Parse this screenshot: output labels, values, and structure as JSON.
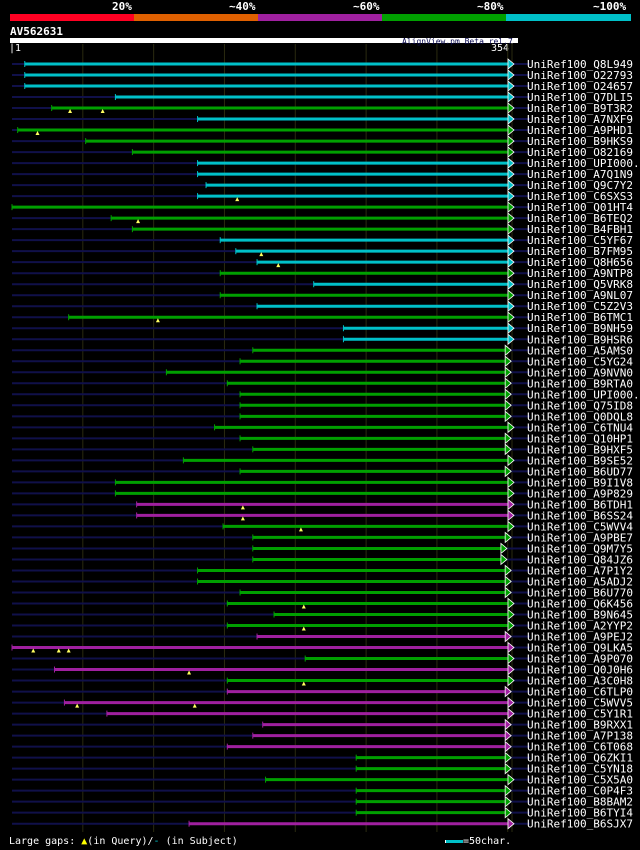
{
  "color_key": [
    {
      "label": "20%",
      "color": "#ff0022"
    },
    {
      "label": "~40%",
      "color": "#e06000"
    },
    {
      "label": "~60%",
      "color": "#a020a0"
    },
    {
      "label": "~80%",
      "color": "#00a000"
    },
    {
      "label": "~100%",
      "color": "#00c0c8"
    }
  ],
  "query": {
    "name": "AV562631",
    "start_label": "|1",
    "end_label": "354|",
    "length": 354
  },
  "credit": "AlignView.pm Beta rel.7",
  "grid_every": 50,
  "hits": [
    {
      "id": "UniRef100_Q8L949",
      "c": 4,
      "s": 10,
      "e": 354,
      "gaps": []
    },
    {
      "id": "UniRef100_O22793",
      "c": 4,
      "s": 10,
      "e": 354,
      "gaps": []
    },
    {
      "id": "UniRef100_O24657",
      "c": 4,
      "s": 10,
      "e": 354,
      "gaps": []
    },
    {
      "id": "UniRef100_Q7DLI5",
      "c": 4,
      "s": 74,
      "e": 354,
      "gaps": []
    },
    {
      "id": "UniRef100_B9T3R2",
      "c": 3,
      "s": 29,
      "e": 354,
      "gaps": [
        42,
        65
      ]
    },
    {
      "id": "UniRef100_A7NXF9",
      "c": 4,
      "s": 132,
      "e": 354,
      "gaps": []
    },
    {
      "id": "UniRef100_A9PHD1",
      "c": 3,
      "s": 5,
      "e": 354,
      "gaps": [
        19
      ]
    },
    {
      "id": "UniRef100_B9HKS9",
      "c": 3,
      "s": 53,
      "e": 354,
      "gaps": []
    },
    {
      "id": "UniRef100_O82169",
      "c": 3,
      "s": 86,
      "e": 354,
      "gaps": []
    },
    {
      "id": "UniRef100_UPI000..",
      "c": 4,
      "s": 132,
      "e": 354,
      "gaps": []
    },
    {
      "id": "UniRef100_A7Q1N9",
      "c": 4,
      "s": 132,
      "e": 354,
      "gaps": []
    },
    {
      "id": "UniRef100_Q9C7Y2",
      "c": 4,
      "s": 138,
      "e": 354,
      "gaps": []
    },
    {
      "id": "UniRef100_C6SXS3",
      "c": 4,
      "s": 132,
      "e": 354,
      "gaps": [
        160
      ]
    },
    {
      "id": "UniRef100_Q01HT4",
      "c": 3,
      "s": 1,
      "e": 354,
      "gaps": []
    },
    {
      "id": "UniRef100_B6TEQ2",
      "c": 3,
      "s": 71,
      "e": 354,
      "gaps": [
        90
      ]
    },
    {
      "id": "UniRef100_B4FBH1",
      "c": 3,
      "s": 86,
      "e": 354,
      "gaps": []
    },
    {
      "id": "UniRef100_C5YF67",
      "c": 4,
      "s": 148,
      "e": 354,
      "gaps": []
    },
    {
      "id": "UniRef100_B7FM95",
      "c": 4,
      "s": 159,
      "e": 354,
      "gaps": [
        177
      ]
    },
    {
      "id": "UniRef100_Q8H656",
      "c": 4,
      "s": 174,
      "e": 354,
      "gaps": [
        189
      ]
    },
    {
      "id": "UniRef100_A9NTP8",
      "c": 3,
      "s": 148,
      "e": 354,
      "gaps": []
    },
    {
      "id": "UniRef100_Q5VRK8",
      "c": 4,
      "s": 214,
      "e": 354,
      "gaps": []
    },
    {
      "id": "UniRef100_A9NL07",
      "c": 3,
      "s": 148,
      "e": 354,
      "gaps": []
    },
    {
      "id": "UniRef100_C5Z2V3",
      "c": 4,
      "s": 174,
      "e": 354,
      "gaps": []
    },
    {
      "id": "UniRef100_B6TMC1",
      "c": 3,
      "s": 41,
      "e": 354,
      "gaps": [
        104
      ]
    },
    {
      "id": "UniRef100_B9NH59",
      "c": 4,
      "s": 235,
      "e": 354,
      "gaps": []
    },
    {
      "id": "UniRef100_B9HSR6",
      "c": 4,
      "s": 235,
      "e": 354,
      "gaps": []
    },
    {
      "id": "UniRef100_A5AMS0",
      "c": 3,
      "s": 171,
      "e": 352,
      "gaps": []
    },
    {
      "id": "UniRef100_C5YG24",
      "c": 3,
      "s": 162,
      "e": 352,
      "gaps": []
    },
    {
      "id": "UniRef100_A9NVN0",
      "c": 3,
      "s": 110,
      "e": 352,
      "gaps": []
    },
    {
      "id": "UniRef100_B9RTA0",
      "c": 3,
      "s": 153,
      "e": 352,
      "gaps": []
    },
    {
      "id": "UniRef100_UPI000..",
      "c": 3,
      "s": 162,
      "e": 352,
      "gaps": []
    },
    {
      "id": "UniRef100_Q75ID8",
      "c": 3,
      "s": 162,
      "e": 352,
      "gaps": []
    },
    {
      "id": "UniRef100_Q0DQL8",
      "c": 3,
      "s": 162,
      "e": 352,
      "gaps": []
    },
    {
      "id": "UniRef100_C6TNU4",
      "c": 3,
      "s": 144,
      "e": 354,
      "gaps": []
    },
    {
      "id": "UniRef100_Q10HP1",
      "c": 3,
      "s": 162,
      "e": 352,
      "gaps": []
    },
    {
      "id": "UniRef100_B9HXF5",
      "c": 3,
      "s": 171,
      "e": 352,
      "gaps": []
    },
    {
      "id": "UniRef100_B9SE52",
      "c": 3,
      "s": 122,
      "e": 354,
      "gaps": []
    },
    {
      "id": "UniRef100_B6UD77",
      "c": 3,
      "s": 162,
      "e": 352,
      "gaps": []
    },
    {
      "id": "UniRef100_B9I1V8",
      "c": 3,
      "s": 74,
      "e": 354,
      "gaps": []
    },
    {
      "id": "UniRef100_A9P829",
      "c": 3,
      "s": 74,
      "e": 354,
      "gaps": []
    },
    {
      "id": "UniRef100_B6TDH1",
      "c": 2,
      "s": 89,
      "e": 354,
      "gaps": [
        164
      ]
    },
    {
      "id": "UniRef100_B6SS24",
      "c": 2,
      "s": 89,
      "e": 354,
      "gaps": [
        164
      ]
    },
    {
      "id": "UniRef100_C5WVV4",
      "c": 3,
      "s": 150,
      "e": 354,
      "gaps": [
        205
      ]
    },
    {
      "id": "UniRef100_A9PBE7",
      "c": 3,
      "s": 171,
      "e": 352,
      "gaps": []
    },
    {
      "id": "UniRef100_Q9M7Y5",
      "c": 3,
      "s": 171,
      "e": 349,
      "gaps": []
    },
    {
      "id": "UniRef100_Q84JZ6",
      "c": 3,
      "s": 171,
      "e": 349,
      "gaps": []
    },
    {
      "id": "UniRef100_A7P1Y2",
      "c": 3,
      "s": 132,
      "e": 352,
      "gaps": []
    },
    {
      "id": "UniRef100_A5ADJ2",
      "c": 3,
      "s": 132,
      "e": 352,
      "gaps": []
    },
    {
      "id": "UniRef100_B6U770",
      "c": 3,
      "s": 162,
      "e": 352,
      "gaps": []
    },
    {
      "id": "UniRef100_Q6K456",
      "c": 3,
      "s": 153,
      "e": 354,
      "gaps": [
        207
      ]
    },
    {
      "id": "UniRef100_B9N645",
      "c": 3,
      "s": 186,
      "e": 354,
      "gaps": []
    },
    {
      "id": "UniRef100_A2YYP2",
      "c": 3,
      "s": 153,
      "e": 354,
      "gaps": [
        207
      ]
    },
    {
      "id": "UniRef100_A9PEJ2",
      "c": 2,
      "s": 174,
      "e": 352,
      "gaps": []
    },
    {
      "id": "UniRef100_Q9LKA5",
      "c": 2,
      "s": 1,
      "e": 354,
      "gaps": [
        16,
        34,
        41
      ]
    },
    {
      "id": "UniRef100_A9P070",
      "c": 3,
      "s": 208,
      "e": 354,
      "gaps": []
    },
    {
      "id": "UniRef100_Q0J0H6",
      "c": 2,
      "s": 31,
      "e": 354,
      "gaps": [
        126
      ]
    },
    {
      "id": "UniRef100_A3C0H8",
      "c": 3,
      "s": 153,
      "e": 354,
      "gaps": [
        207
      ]
    },
    {
      "id": "UniRef100_C6TLP0",
      "c": 2,
      "s": 153,
      "e": 352,
      "gaps": []
    },
    {
      "id": "UniRef100_C5WVV5",
      "c": 2,
      "s": 38,
      "e": 354,
      "gaps": [
        47,
        130
      ]
    },
    {
      "id": "UniRef100_C5Y1R1",
      "c": 2,
      "s": 68,
      "e": 354,
      "gaps": []
    },
    {
      "id": "UniRef100_B9RXX1",
      "c": 2,
      "s": 178,
      "e": 352,
      "gaps": []
    },
    {
      "id": "UniRef100_A7P138",
      "c": 2,
      "s": 171,
      "e": 352,
      "gaps": []
    },
    {
      "id": "UniRef100_C6T068",
      "c": 2,
      "s": 153,
      "e": 352,
      "gaps": []
    },
    {
      "id": "UniRef100_Q6ZKI1",
      "c": 3,
      "s": 244,
      "e": 352,
      "gaps": []
    },
    {
      "id": "UniRef100_C5YN18",
      "c": 3,
      "s": 244,
      "e": 352,
      "gaps": []
    },
    {
      "id": "UniRef100_C5X5A0",
      "c": 3,
      "s": 180,
      "e": 354,
      "gaps": []
    },
    {
      "id": "UniRef100_C0P4F3",
      "c": 3,
      "s": 244,
      "e": 352,
      "gaps": []
    },
    {
      "id": "UniRef100_B8BAM2",
      "c": 3,
      "s": 244,
      "e": 352,
      "gaps": []
    },
    {
      "id": "UniRef100_B6TYI4",
      "c": 3,
      "s": 244,
      "e": 352,
      "gaps": []
    },
    {
      "id": "UniRef100_B6SJX7",
      "c": 2,
      "s": 126,
      "e": 354,
      "gaps": []
    }
  ],
  "legend": {
    "prefix": "Large gaps:",
    "query_mark": "▲",
    "query_text": "(in Query)/",
    "subject_mark": "-",
    "subject_text": " (in Subject)",
    "scale_text": "=50char."
  }
}
